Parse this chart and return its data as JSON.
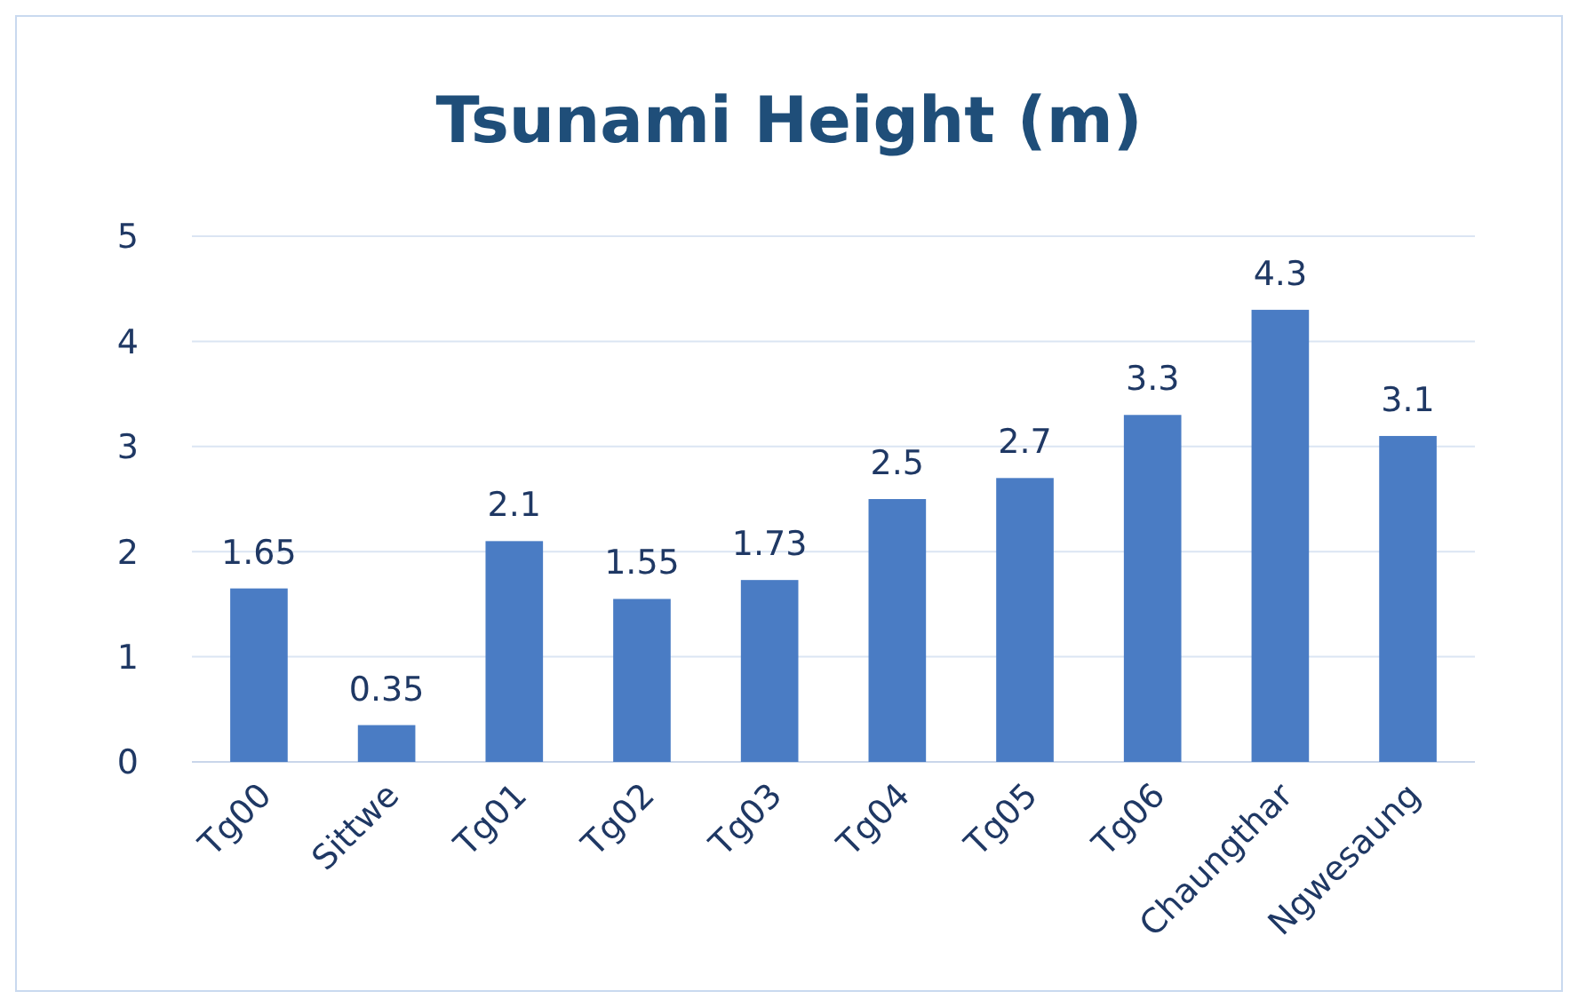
{
  "chart_data": {
    "type": "bar",
    "title": "Tsunami Height (m)",
    "categories": [
      "Tg00",
      "Sittwe",
      "Tg01",
      "Tg02",
      "Tg03",
      "Tg04",
      "Tg05",
      "Tg06",
      "Chaungthar",
      "Ngwesaung"
    ],
    "values": [
      1.65,
      0.35,
      2.1,
      1.55,
      1.73,
      2.5,
      2.7,
      3.3,
      4.3,
      3.1
    ],
    "color": "#4a7cc4",
    "ylim": [
      0,
      5
    ],
    "yticks": [
      0,
      1,
      2,
      3,
      4,
      5
    ],
    "grid": "y",
    "data_labels": true
  }
}
